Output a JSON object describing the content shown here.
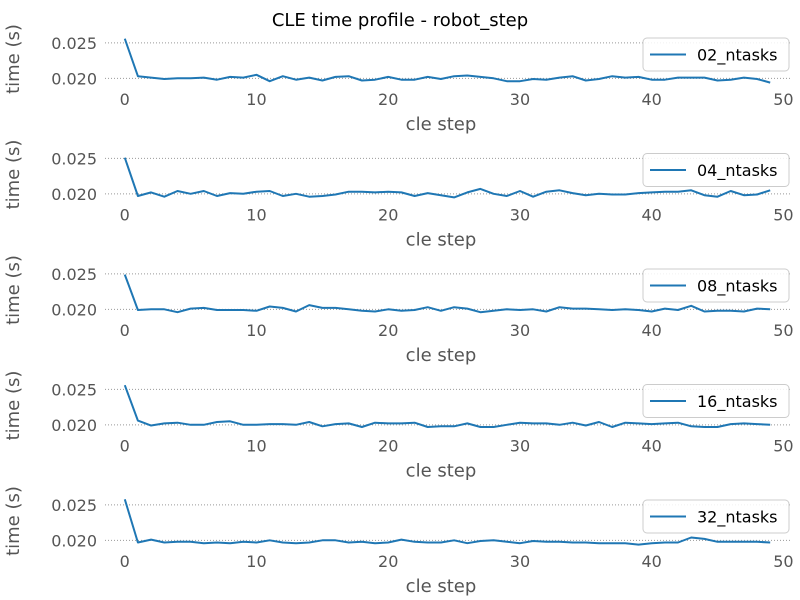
{
  "figure": {
    "title": "CLE time profile - robot_step"
  },
  "colors": {
    "line": "#1f77b4",
    "grid": "#999999",
    "legend_border": "#cccccc"
  },
  "chart_data": [
    {
      "type": "line",
      "xlabel": "cle step",
      "ylabel": "time (s)",
      "xlim": [
        -1.5,
        50.5
      ],
      "ylim": [
        0.0192,
        0.0264
      ],
      "xticks": [
        0,
        10,
        20,
        30,
        40,
        50
      ],
      "yticks": [
        0.02,
        0.025
      ],
      "ytick_labels": [
        "0.020",
        "0.025"
      ],
      "grid": "y-dotted",
      "legend_position": "right",
      "series": [
        {
          "name": "02_ntasks",
          "x": [
            0,
            1,
            2,
            3,
            4,
            5,
            6,
            7,
            8,
            9,
            10,
            11,
            12,
            13,
            14,
            15,
            16,
            17,
            18,
            19,
            20,
            21,
            22,
            23,
            24,
            25,
            26,
            27,
            28,
            29,
            30,
            31,
            32,
            33,
            34,
            35,
            36,
            37,
            38,
            39,
            40,
            41,
            42,
            43,
            44,
            45,
            46,
            47,
            48,
            49
          ],
          "y": [
            0.0256,
            0.0203,
            0.0201,
            0.0199,
            0.02,
            0.02,
            0.0201,
            0.0198,
            0.0202,
            0.0201,
            0.0205,
            0.0196,
            0.0203,
            0.0198,
            0.0201,
            0.0197,
            0.0202,
            0.0203,
            0.0197,
            0.0198,
            0.0202,
            0.0198,
            0.0198,
            0.0202,
            0.0199,
            0.0203,
            0.0204,
            0.0202,
            0.02,
            0.0196,
            0.0196,
            0.0199,
            0.0198,
            0.0201,
            0.0203,
            0.0197,
            0.0199,
            0.0203,
            0.0201,
            0.0202,
            0.0198,
            0.0198,
            0.0201,
            0.0201,
            0.0201,
            0.0197,
            0.0198,
            0.0201,
            0.0199,
            0.0194
          ]
        }
      ]
    },
    {
      "type": "line",
      "xlabel": "cle step",
      "ylabel": "time (s)",
      "xlim": [
        -1.5,
        50.5
      ],
      "ylim": [
        0.0192,
        0.0264
      ],
      "xticks": [
        0,
        10,
        20,
        30,
        40,
        50
      ],
      "yticks": [
        0.02,
        0.025
      ],
      "ytick_labels": [
        "0.020",
        "0.025"
      ],
      "grid": "y-dotted",
      "legend_position": "right",
      "series": [
        {
          "name": "04_ntasks",
          "x": [
            0,
            1,
            2,
            3,
            4,
            5,
            6,
            7,
            8,
            9,
            10,
            11,
            12,
            13,
            14,
            15,
            16,
            17,
            18,
            19,
            20,
            21,
            22,
            23,
            24,
            25,
            26,
            27,
            28,
            29,
            30,
            31,
            32,
            33,
            34,
            35,
            36,
            37,
            38,
            39,
            40,
            41,
            42,
            43,
            44,
            45,
            46,
            47,
            48,
            49
          ],
          "y": [
            0.0251,
            0.0197,
            0.0202,
            0.0196,
            0.0204,
            0.02,
            0.0204,
            0.0197,
            0.0201,
            0.02,
            0.0203,
            0.0204,
            0.0197,
            0.02,
            0.0196,
            0.0197,
            0.0199,
            0.0203,
            0.0203,
            0.0202,
            0.0203,
            0.0202,
            0.0197,
            0.0201,
            0.0198,
            0.0195,
            0.0202,
            0.0207,
            0.02,
            0.0197,
            0.0204,
            0.0196,
            0.0203,
            0.0205,
            0.0201,
            0.0198,
            0.02,
            0.0199,
            0.0199,
            0.0201,
            0.0202,
            0.0203,
            0.0203,
            0.0205,
            0.0198,
            0.0196,
            0.0204,
            0.0198,
            0.0199,
            0.0205
          ]
        }
      ]
    },
    {
      "type": "line",
      "xlabel": "cle step",
      "ylabel": "time (s)",
      "xlim": [
        -1.5,
        50.5
      ],
      "ylim": [
        0.0192,
        0.0264
      ],
      "xticks": [
        0,
        10,
        20,
        30,
        40,
        50
      ],
      "yticks": [
        0.02,
        0.025
      ],
      "ytick_labels": [
        "0.020",
        "0.025"
      ],
      "grid": "y-dotted",
      "legend_position": "right",
      "series": [
        {
          "name": "08_ntasks",
          "x": [
            0,
            1,
            2,
            3,
            4,
            5,
            6,
            7,
            8,
            9,
            10,
            11,
            12,
            13,
            14,
            15,
            16,
            17,
            18,
            19,
            20,
            21,
            22,
            23,
            24,
            25,
            26,
            27,
            28,
            29,
            30,
            31,
            32,
            33,
            34,
            35,
            36,
            37,
            38,
            39,
            40,
            41,
            42,
            43,
            44,
            45,
            46,
            47,
            48,
            49
          ],
          "y": [
            0.0249,
            0.0199,
            0.02,
            0.02,
            0.0196,
            0.0201,
            0.0202,
            0.0199,
            0.0199,
            0.0199,
            0.0198,
            0.0204,
            0.0202,
            0.0197,
            0.0206,
            0.0202,
            0.0202,
            0.02,
            0.0198,
            0.0197,
            0.02,
            0.0198,
            0.0199,
            0.0203,
            0.0198,
            0.0203,
            0.0201,
            0.0196,
            0.0198,
            0.02,
            0.0199,
            0.02,
            0.0197,
            0.0203,
            0.0201,
            0.0201,
            0.02,
            0.0199,
            0.02,
            0.0199,
            0.0197,
            0.0201,
            0.0199,
            0.0205,
            0.0197,
            0.0198,
            0.0198,
            0.0197,
            0.0201,
            0.02
          ]
        }
      ]
    },
    {
      "type": "line",
      "xlabel": "cle step",
      "ylabel": "time (s)",
      "xlim": [
        -1.5,
        50.5
      ],
      "ylim": [
        0.0192,
        0.0264
      ],
      "xticks": [
        0,
        10,
        20,
        30,
        40,
        50
      ],
      "yticks": [
        0.02,
        0.025
      ],
      "ytick_labels": [
        "0.020",
        "0.025"
      ],
      "grid": "y-dotted",
      "legend_position": "right",
      "series": [
        {
          "name": "16_ntasks",
          "x": [
            0,
            1,
            2,
            3,
            4,
            5,
            6,
            7,
            8,
            9,
            10,
            11,
            12,
            13,
            14,
            15,
            16,
            17,
            18,
            19,
            20,
            21,
            22,
            23,
            24,
            25,
            26,
            27,
            28,
            29,
            30,
            31,
            32,
            33,
            34,
            35,
            36,
            37,
            38,
            39,
            40,
            41,
            42,
            43,
            44,
            45,
            46,
            47,
            48,
            49
          ],
          "y": [
            0.0256,
            0.0206,
            0.0199,
            0.0202,
            0.0203,
            0.02,
            0.02,
            0.0204,
            0.0205,
            0.02,
            0.02,
            0.0201,
            0.0201,
            0.02,
            0.0204,
            0.0198,
            0.0201,
            0.0202,
            0.0197,
            0.0203,
            0.0202,
            0.0202,
            0.0203,
            0.0197,
            0.0198,
            0.0198,
            0.0202,
            0.0197,
            0.0197,
            0.02,
            0.0203,
            0.0202,
            0.0202,
            0.02,
            0.0203,
            0.0199,
            0.0204,
            0.0197,
            0.0203,
            0.0202,
            0.0201,
            0.0202,
            0.0203,
            0.0198,
            0.0197,
            0.0197,
            0.0201,
            0.0202,
            0.0201,
            0.02
          ]
        }
      ]
    },
    {
      "type": "line",
      "xlabel": "cle step",
      "ylabel": "time (s)",
      "xlim": [
        -1.5,
        50.5
      ],
      "ylim": [
        0.0192,
        0.0264
      ],
      "xticks": [
        0,
        10,
        20,
        30,
        40,
        50
      ],
      "yticks": [
        0.02,
        0.025
      ],
      "ytick_labels": [
        "0.020",
        "0.025"
      ],
      "grid": "y-dotted",
      "legend_position": "right",
      "series": [
        {
          "name": "32_ntasks",
          "x": [
            0,
            1,
            2,
            3,
            4,
            5,
            6,
            7,
            8,
            9,
            10,
            11,
            12,
            13,
            14,
            15,
            16,
            17,
            18,
            19,
            20,
            21,
            22,
            23,
            24,
            25,
            26,
            27,
            28,
            29,
            30,
            31,
            32,
            33,
            34,
            35,
            36,
            37,
            38,
            39,
            40,
            41,
            42,
            43,
            44,
            45,
            46,
            47,
            48,
            49
          ],
          "y": [
            0.0258,
            0.0197,
            0.0201,
            0.0197,
            0.0198,
            0.0198,
            0.0196,
            0.0197,
            0.0196,
            0.0198,
            0.0197,
            0.02,
            0.0197,
            0.0196,
            0.0197,
            0.02,
            0.02,
            0.0197,
            0.0198,
            0.0196,
            0.0197,
            0.0201,
            0.0198,
            0.0197,
            0.0197,
            0.02,
            0.0196,
            0.0199,
            0.02,
            0.0198,
            0.0196,
            0.0199,
            0.0198,
            0.0198,
            0.0197,
            0.0197,
            0.0196,
            0.0196,
            0.0196,
            0.0194,
            0.0196,
            0.0197,
            0.0197,
            0.0204,
            0.0202,
            0.0198,
            0.0198,
            0.0198,
            0.0198,
            0.0197
          ]
        }
      ]
    }
  ]
}
